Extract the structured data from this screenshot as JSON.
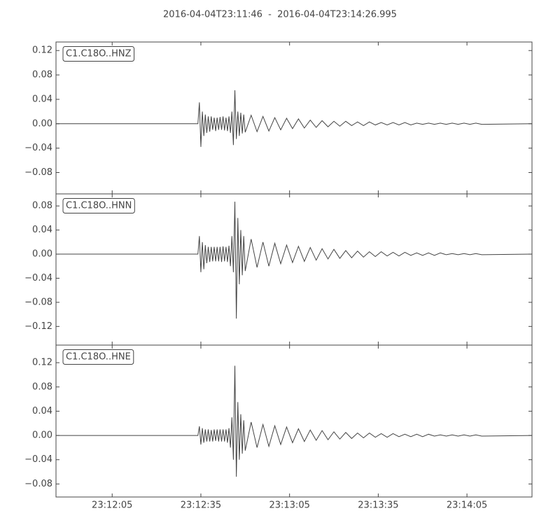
{
  "title": "2016-04-04T23:11:46  -  2016-04-04T23:14:26.995",
  "chart_data": [
    {
      "type": "line",
      "x": [
        "23:11:46",
        "23:12:34",
        "23:12:34.5",
        "23:12:35",
        "23:12:35.5",
        "23:12:36",
        "23:12:36.5",
        "23:12:37",
        "23:12:37.5",
        "23:12:38",
        "23:12:38.5",
        "23:12:39",
        "23:12:39.5",
        "23:12:40",
        "23:12:40.5",
        "23:12:41",
        "23:12:41.5",
        "23:12:42",
        "23:12:42.5",
        "23:12:43",
        "23:12:43.5",
        "23:12:44",
        "23:12:44.5",
        "23:12:45",
        "23:12:45.5",
        "23:12:46",
        "23:12:46.5",
        "23:12:47",
        "23:12:47.5",
        "23:12:48",
        "23:12:48.5",
        "23:12:49",
        "23:12:49.5",
        "23:12:50",
        "23:12:52",
        "23:12:54",
        "23:12:56",
        "23:12:58",
        "23:13:00",
        "23:13:02",
        "23:13:04",
        "23:13:06",
        "23:13:08",
        "23:13:10",
        "23:13:12",
        "23:13:14",
        "23:13:16",
        "23:13:18",
        "23:13:20",
        "23:13:22",
        "23:13:24",
        "23:13:26",
        "23:13:28",
        "23:13:30",
        "23:13:32",
        "23:13:34",
        "23:13:36",
        "23:13:38",
        "23:13:40",
        "23:13:42",
        "23:13:44",
        "23:13:46",
        "23:13:48",
        "23:13:50",
        "23:13:52",
        "23:13:54",
        "23:13:56",
        "23:13:58",
        "23:14:00",
        "23:14:02",
        "23:14:04",
        "23:14:06",
        "23:14:08",
        "23:14:10",
        "23:14:26.995"
      ],
      "series": [
        {
          "name": "C1.C18O..HNZ",
          "color": "#444444",
          "values": [
            0,
            0,
            0.035,
            -0.038,
            0.02,
            -0.02,
            0.015,
            -0.015,
            0.012,
            -0.013,
            0.012,
            -0.01,
            0.01,
            -0.012,
            0.01,
            -0.01,
            0.011,
            -0.01,
            0.012,
            -0.011,
            0.01,
            -0.012,
            0.012,
            -0.015,
            0.02,
            -0.035,
            0.055,
            -0.025,
            0.02,
            -0.02,
            0.018,
            -0.016,
            0.015,
            -0.014,
            0.014,
            -0.013,
            0.012,
            -0.012,
            0.01,
            -0.01,
            0.009,
            -0.008,
            0.008,
            -0.007,
            0.006,
            -0.006,
            0.005,
            -0.005,
            0.004,
            -0.004,
            0.004,
            -0.003,
            0.003,
            -0.003,
            0.003,
            -0.002,
            0.002,
            -0.002,
            0.002,
            -0.002,
            0.002,
            -0.002,
            0.001,
            -0.001,
            0.001,
            -0.001,
            0.001,
            -0.001,
            0.001,
            -0.001,
            0.001,
            -0.001,
            0.001,
            -0.001,
            0
          ]
        }
      ],
      "xlim": [
        "23:11:46",
        "23:14:26.995"
      ],
      "ylim": [
        -0.115,
        0.134
      ],
      "yticks": [
        {
          "value": -0.08,
          "label": "−0.08"
        },
        {
          "value": -0.04,
          "label": "−0.04"
        },
        {
          "value": 0,
          "label": "0.00"
        },
        0.04,
        0.08,
        0.12
      ]
    },
    {
      "type": "line",
      "x": [
        "23:11:46",
        "23:12:34",
        "23:12:34.5",
        "23:12:35",
        "23:12:35.5",
        "23:12:36",
        "23:12:36.5",
        "23:12:37",
        "23:12:37.5",
        "23:12:38",
        "23:12:38.5",
        "23:12:39",
        "23:12:39.5",
        "23:12:40",
        "23:12:40.5",
        "23:12:41",
        "23:12:41.5",
        "23:12:42",
        "23:12:42.5",
        "23:12:43",
        "23:12:43.5",
        "23:12:44",
        "23:12:44.5",
        "23:12:45",
        "23:12:45.5",
        "23:12:46",
        "23:12:46.5",
        "23:12:47",
        "23:12:47.5",
        "23:12:48",
        "23:12:48.5",
        "23:12:49",
        "23:12:49.5",
        "23:12:50",
        "23:12:52",
        "23:12:54",
        "23:12:56",
        "23:12:58",
        "23:13:00",
        "23:13:02",
        "23:13:04",
        "23:13:06",
        "23:13:08",
        "23:13:10",
        "23:13:12",
        "23:13:14",
        "23:13:16",
        "23:13:18",
        "23:13:20",
        "23:13:22",
        "23:13:24",
        "23:13:26",
        "23:13:28",
        "23:13:30",
        "23:13:32",
        "23:13:34",
        "23:13:36",
        "23:13:38",
        "23:13:40",
        "23:13:42",
        "23:13:44",
        "23:13:46",
        "23:13:48",
        "23:13:50",
        "23:13:52",
        "23:13:54",
        "23:13:56",
        "23:13:58",
        "23:14:00",
        "23:14:02",
        "23:14:04",
        "23:14:06",
        "23:14:08",
        "23:14:10",
        "23:14:26.995"
      ],
      "series": [
        {
          "name": "C1.C18O..HNN",
          "color": "#444444",
          "values": [
            0,
            0,
            0.03,
            -0.03,
            0.02,
            -0.025,
            0.015,
            -0.015,
            0.012,
            -0.013,
            0.012,
            -0.012,
            0.012,
            -0.012,
            0.012,
            -0.012,
            0.012,
            -0.013,
            0.013,
            -0.012,
            0.012,
            -0.013,
            0.014,
            -0.02,
            0.03,
            -0.03,
            0.087,
            -0.107,
            0.06,
            -0.05,
            0.04,
            -0.035,
            0.03,
            -0.028,
            0.025,
            -0.022,
            0.02,
            -0.02,
            0.018,
            -0.016,
            0.015,
            -0.014,
            0.013,
            -0.012,
            0.011,
            -0.01,
            0.009,
            -0.008,
            0.008,
            -0.007,
            0.006,
            -0.006,
            0.005,
            -0.005,
            0.004,
            -0.004,
            0.004,
            -0.003,
            0.003,
            -0.003,
            0.003,
            -0.002,
            0.002,
            -0.002,
            0.002,
            -0.002,
            0.002,
            -0.001,
            0.001,
            -0.001,
            0.001,
            -0.001,
            0.001,
            -0.001,
            0
          ]
        }
      ],
      "xlim": [
        "23:11:46",
        "23:14:26.995"
      ],
      "ylim": [
        -0.151,
        0.1
      ],
      "yticks": [
        {
          "value": -0.12,
          "label": "−0.12"
        },
        {
          "value": -0.08,
          "label": "−0.08"
        },
        {
          "value": -0.04,
          "label": "−0.04"
        },
        {
          "value": 0,
          "label": "0.00"
        },
        0.04,
        0.08
      ]
    },
    {
      "type": "line",
      "x": [
        "23:11:46",
        "23:12:34",
        "23:12:34.5",
        "23:12:35",
        "23:12:35.5",
        "23:12:36",
        "23:12:36.5",
        "23:12:37",
        "23:12:37.5",
        "23:12:38",
        "23:12:38.5",
        "23:12:39",
        "23:12:39.5",
        "23:12:40",
        "23:12:40.5",
        "23:12:41",
        "23:12:41.5",
        "23:12:42",
        "23:12:42.5",
        "23:12:43",
        "23:12:43.5",
        "23:12:44",
        "23:12:44.5",
        "23:12:45",
        "23:12:45.5",
        "23:12:46",
        "23:12:46.5",
        "23:12:47",
        "23:12:47.5",
        "23:12:48",
        "23:12:48.5",
        "23:12:49",
        "23:12:49.5",
        "23:12:50",
        "23:12:52",
        "23:12:54",
        "23:12:56",
        "23:12:58",
        "23:13:00",
        "23:13:02",
        "23:13:04",
        "23:13:06",
        "23:13:08",
        "23:13:10",
        "23:13:12",
        "23:13:14",
        "23:13:16",
        "23:13:18",
        "23:13:20",
        "23:13:22",
        "23:13:24",
        "23:13:26",
        "23:13:28",
        "23:13:30",
        "23:13:32",
        "23:13:34",
        "23:13:36",
        "23:13:38",
        "23:13:40",
        "23:13:42",
        "23:13:44",
        "23:13:46",
        "23:13:48",
        "23:13:50",
        "23:13:52",
        "23:13:54",
        "23:13:56",
        "23:13:58",
        "23:14:00",
        "23:14:02",
        "23:14:04",
        "23:14:06",
        "23:14:08",
        "23:14:10",
        "23:14:26.995"
      ],
      "series": [
        {
          "name": "C1.C18O..HNE",
          "color": "#444444",
          "values": [
            0,
            0,
            0.015,
            -0.015,
            0.012,
            -0.012,
            0.01,
            -0.01,
            0.01,
            -0.01,
            0.009,
            -0.01,
            0.01,
            -0.009,
            0.01,
            -0.01,
            0.01,
            -0.01,
            0.01,
            -0.01,
            0.01,
            -0.012,
            0.012,
            -0.02,
            0.03,
            -0.04,
            0.115,
            -0.068,
            0.055,
            -0.04,
            0.035,
            -0.03,
            0.025,
            -0.025,
            0.022,
            -0.02,
            0.018,
            -0.018,
            0.016,
            -0.015,
            0.014,
            -0.012,
            0.011,
            -0.01,
            0.009,
            -0.008,
            0.008,
            -0.007,
            0.006,
            -0.006,
            0.005,
            -0.005,
            0.004,
            -0.004,
            0.004,
            -0.003,
            0.003,
            -0.003,
            0.003,
            -0.002,
            0.002,
            -0.002,
            0.002,
            -0.002,
            0.002,
            -0.001,
            0.001,
            -0.001,
            0.001,
            -0.001,
            0.001,
            -0.001,
            0.001,
            -0.001,
            0
          ]
        }
      ],
      "xlim": [
        "23:11:46",
        "23:14:26.995"
      ],
      "ylim": [
        -0.1015,
        0.149
      ],
      "yticks": [
        {
          "value": -0.08,
          "label": "−0.08"
        },
        {
          "value": -0.04,
          "label": "−0.04"
        },
        {
          "value": 0,
          "label": "0.00"
        },
        0.04,
        0.08,
        0.12
      ],
      "xticks": [
        "23:12:05",
        "23:12:35",
        "23:13:05",
        "23:13:35",
        "23:14:05"
      ]
    }
  ]
}
